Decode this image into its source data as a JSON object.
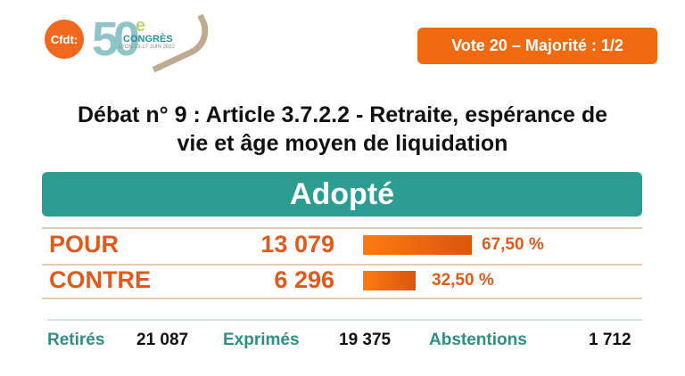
{
  "logo": {
    "cfdt": "Cfdt:",
    "number": "50",
    "suffix": "e",
    "congres": "CONGRÈS",
    "place_date": "LYON 13-17 JUIN 2022"
  },
  "badge": "Vote 20 – Majorité : 1/2",
  "title": {
    "line1": "Débat n°  9 : Article 3.7.2.2 - Retraite, espérance de",
    "line2": "vie et âge moyen de liquidation"
  },
  "result": "Adopté",
  "votes": [
    {
      "label": "POUR",
      "count": "13 079",
      "percent_value": 67.5,
      "percent": "67,50 %"
    },
    {
      "label": "CONTRE",
      "count": "6 296",
      "percent_value": 32.5,
      "percent": "32,50 %"
    }
  ],
  "summary": {
    "retires_label": "Retirés",
    "retires": "21 087",
    "exprimes_label": "Exprimés",
    "exprimes": "19 375",
    "abstentions_label": "Abstentions",
    "abstentions": "1 712"
  },
  "colors": {
    "orange": "#f26a0f",
    "teal": "#2d9d91",
    "text_orange": "#e05a1c"
  }
}
